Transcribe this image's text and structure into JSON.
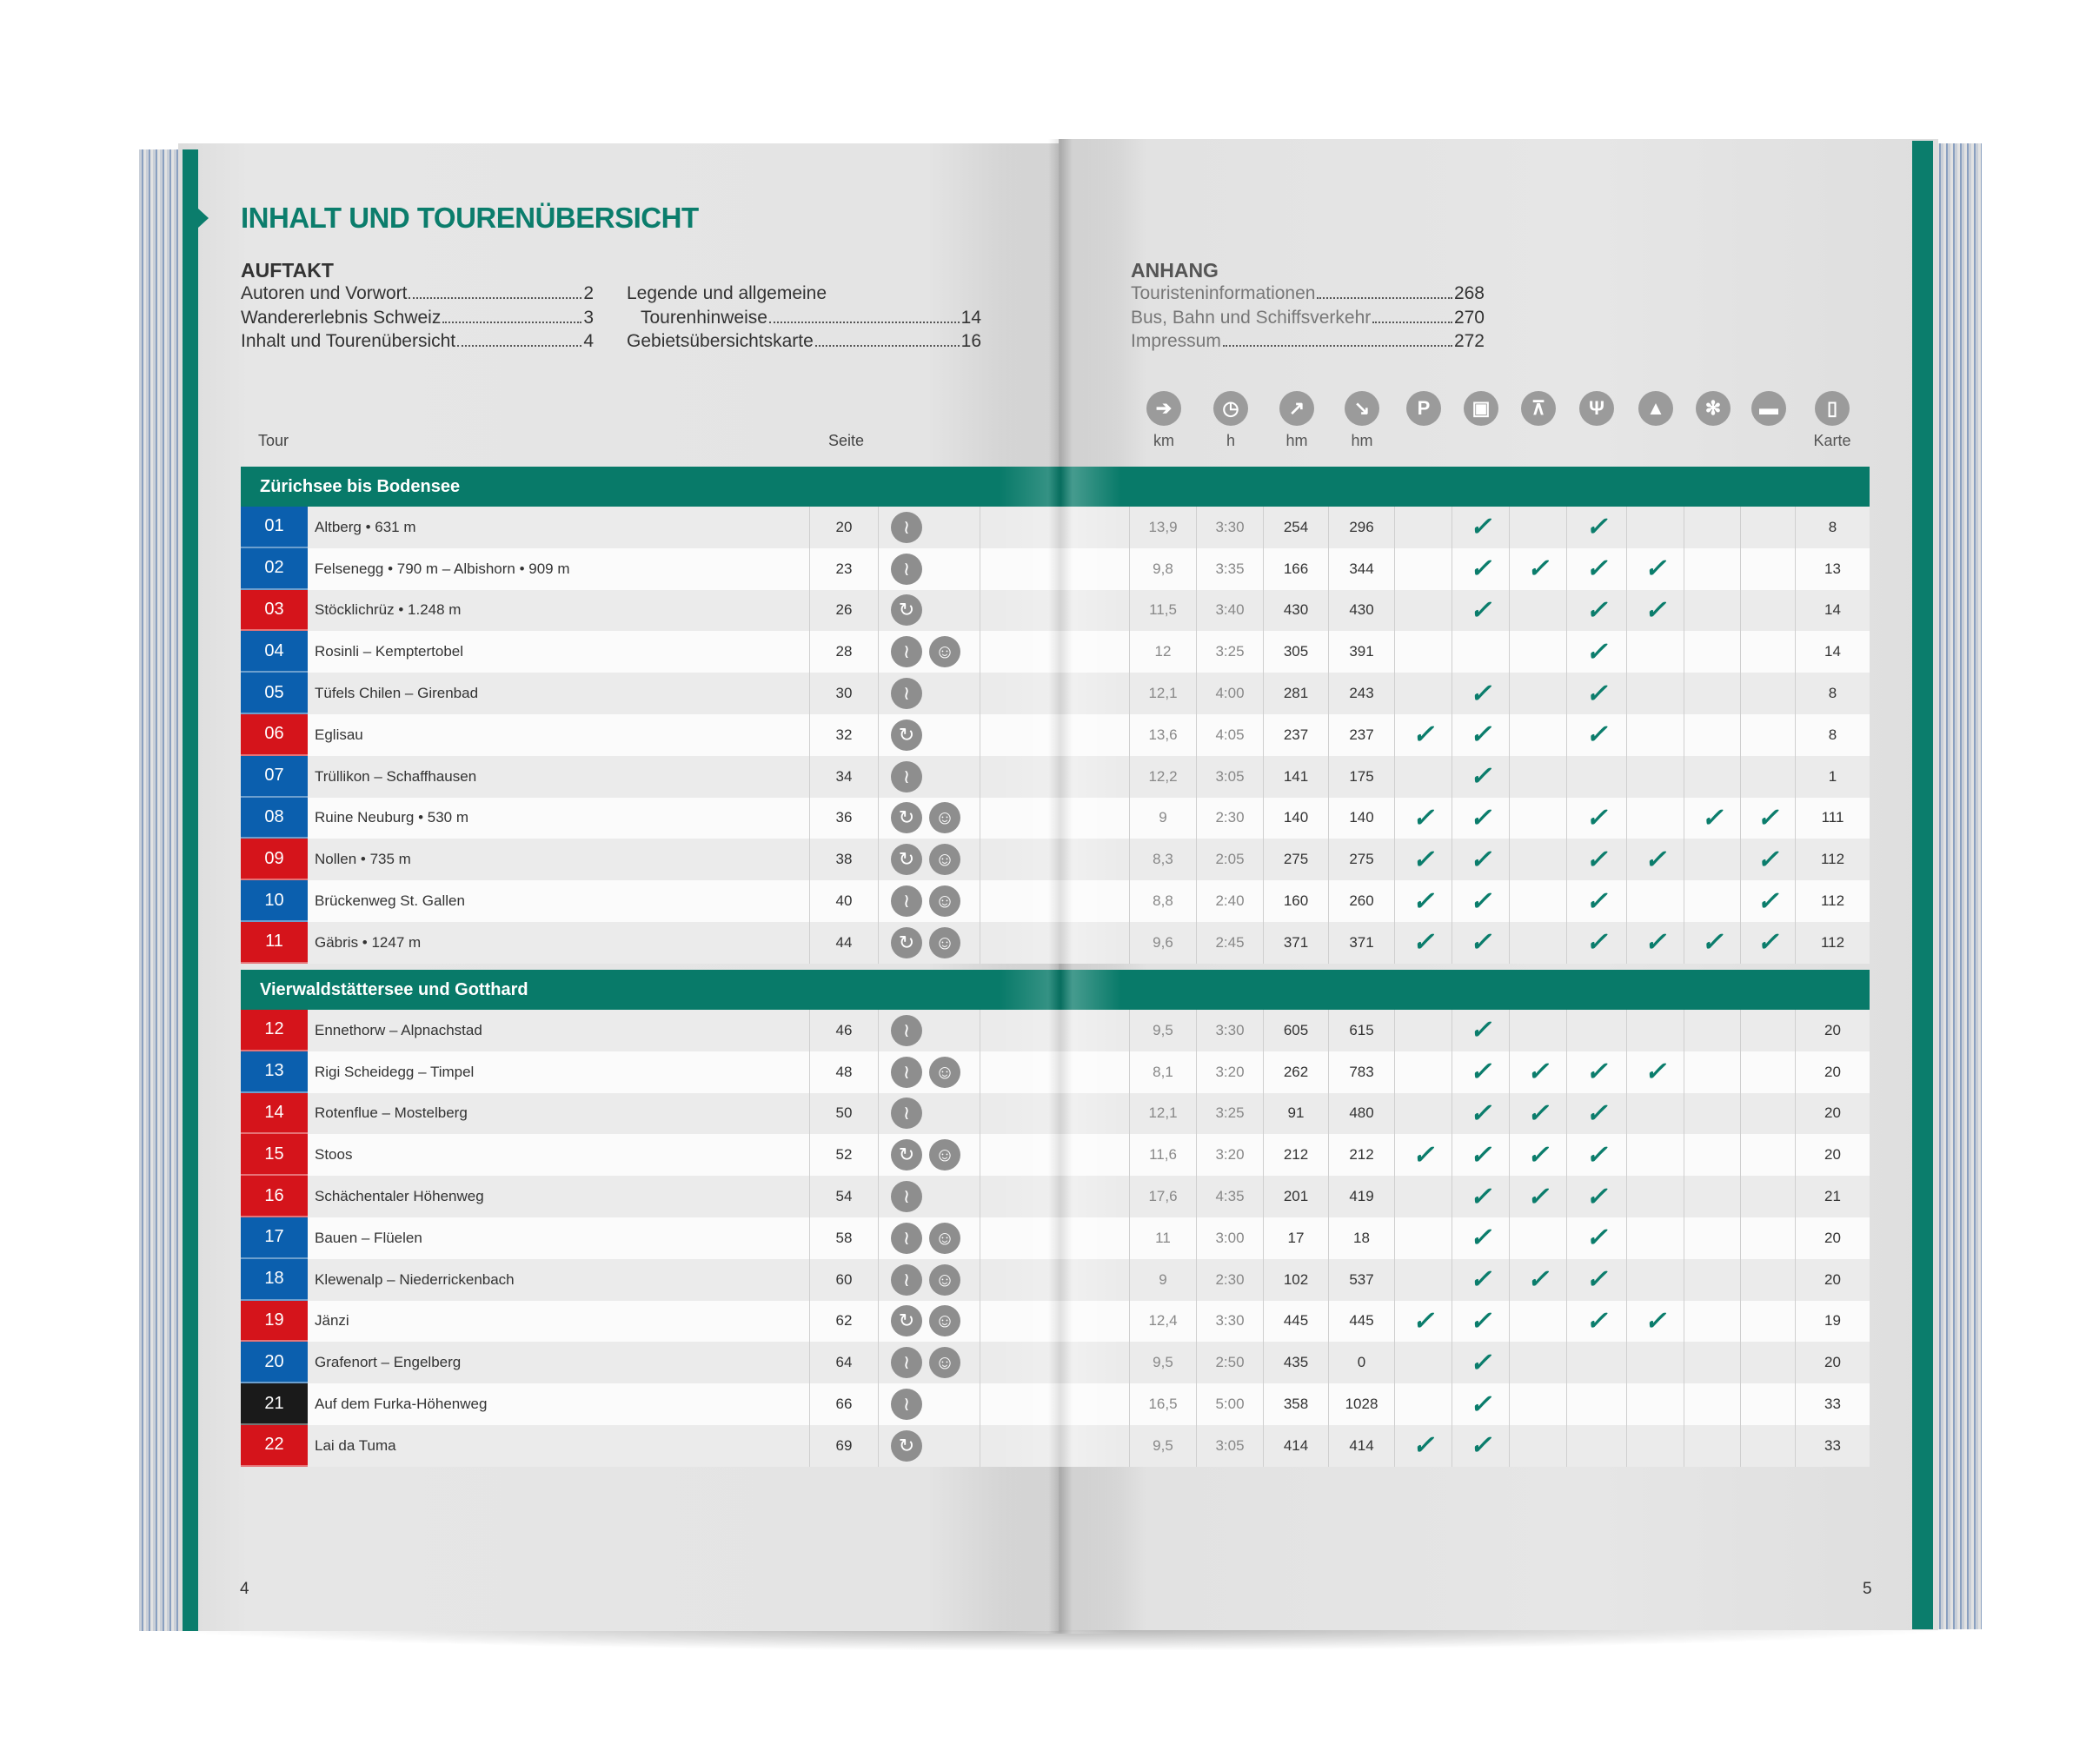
{
  "title": "INHALT UND TOURENÜBERSICHT",
  "auftakt": {
    "heading": "AUFTAKT",
    "entries": [
      {
        "label": "Autoren und Vorwort",
        "page": "2"
      },
      {
        "label": "Wandererlebnis Schweiz",
        "page": "3"
      },
      {
        "label": "Inhalt und Tourenübersicht",
        "page": "4"
      }
    ],
    "entries2": [
      {
        "label": "Legende und allgemeine",
        "page": ""
      },
      {
        "label": "Tourenhinweise",
        "page": "14"
      },
      {
        "label": "Gebietsübersichtskarte",
        "page": "16"
      }
    ]
  },
  "anhang": {
    "heading": "ANHANG",
    "entries": [
      {
        "label": "Touristeninformationen",
        "page": "268"
      },
      {
        "label": "Bus, Bahn und Schiffsverkehr",
        "page": "270"
      },
      {
        "label": "Impressum",
        "page": "272"
      }
    ]
  },
  "columns": {
    "tour": "Tour",
    "seite": "Seite",
    "km": "km",
    "h": "h",
    "hm_up": "hm",
    "hm_down": "hm",
    "karte": "Karte"
  },
  "header_icons": [
    "signpost-icon",
    "clock-icon",
    "ascent-icon",
    "descent-icon",
    "parking-icon",
    "bus-icon",
    "cable-car-icon",
    "restaurant-icon",
    "hut-icon",
    "winter-icon",
    "overnight-icon",
    "map-icon"
  ],
  "check_columns": [
    "parking",
    "bus",
    "cable-car",
    "restaurant",
    "hut",
    "winter",
    "overnight"
  ],
  "colors": {
    "teal": "#0b7d6c",
    "blue": "#0b5fae",
    "red": "#d5141b",
    "black": "#1a1a1a",
    "icon_gray": "#8e8e8e"
  },
  "sections": [
    {
      "title": "Zürichsee bis Bodensee",
      "tours": [
        {
          "nr": "01",
          "color": "blue",
          "name": "Altberg • 631 m",
          "page": "20",
          "route": "linear",
          "kids": false,
          "km": "13,9",
          "h": "3:30",
          "up": "254",
          "down": "296",
          "checks": [
            0,
            1,
            0,
            1,
            0,
            0,
            0
          ],
          "karte": "8"
        },
        {
          "nr": "02",
          "color": "blue",
          "name": "Felsenegg • 790 m – Albishorn • 909 m",
          "page": "23",
          "route": "linear",
          "kids": false,
          "km": "9,8",
          "h": "3:35",
          "up": "166",
          "down": "344",
          "checks": [
            0,
            1,
            1,
            1,
            1,
            0,
            0
          ],
          "karte": "13"
        },
        {
          "nr": "03",
          "color": "red",
          "name": "Stöcklichrüz • 1.248 m",
          "page": "26",
          "route": "loop",
          "kids": false,
          "km": "11,5",
          "h": "3:40",
          "up": "430",
          "down": "430",
          "checks": [
            0,
            1,
            0,
            1,
            1,
            0,
            0
          ],
          "karte": "14"
        },
        {
          "nr": "04",
          "color": "blue",
          "name": "Rosinli – Kemptertobel",
          "page": "28",
          "route": "linear",
          "kids": true,
          "km": "12",
          "h": "3:25",
          "up": "305",
          "down": "391",
          "checks": [
            0,
            0,
            0,
            1,
            0,
            0,
            0
          ],
          "karte": "14"
        },
        {
          "nr": "05",
          "color": "blue",
          "name": "Tüfels Chilen – Girenbad",
          "page": "30",
          "route": "linear",
          "kids": false,
          "km": "12,1",
          "h": "4:00",
          "up": "281",
          "down": "243",
          "checks": [
            0,
            1,
            0,
            1,
            0,
            0,
            0
          ],
          "karte": "8"
        },
        {
          "nr": "06",
          "color": "red",
          "name": "Eglisau",
          "page": "32",
          "route": "loop",
          "kids": false,
          "km": "13,6",
          "h": "4:05",
          "up": "237",
          "down": "237",
          "checks": [
            1,
            1,
            0,
            1,
            0,
            0,
            0
          ],
          "karte": "8"
        },
        {
          "nr": "07",
          "color": "blue",
          "name": "Trüllikon – Schaffhausen",
          "page": "34",
          "route": "linear",
          "kids": false,
          "km": "12,2",
          "h": "3:05",
          "up": "141",
          "down": "175",
          "checks": [
            0,
            1,
            0,
            0,
            0,
            0,
            0
          ],
          "karte": "1"
        },
        {
          "nr": "08",
          "color": "blue",
          "name": "Ruine Neuburg • 530 m",
          "page": "36",
          "route": "loop",
          "kids": true,
          "km": "9",
          "h": "2:30",
          "up": "140",
          "down": "140",
          "checks": [
            1,
            1,
            0,
            1,
            0,
            1,
            1
          ],
          "karte": "111"
        },
        {
          "nr": "09",
          "color": "red",
          "name": "Nollen • 735 m",
          "page": "38",
          "route": "loop",
          "kids": true,
          "km": "8,3",
          "h": "2:05",
          "up": "275",
          "down": "275",
          "checks": [
            1,
            1,
            0,
            1,
            1,
            0,
            1
          ],
          "karte": "112"
        },
        {
          "nr": "10",
          "color": "blue",
          "name": "Brückenweg St. Gallen",
          "page": "40",
          "route": "linear",
          "kids": true,
          "km": "8,8",
          "h": "2:40",
          "up": "160",
          "down": "260",
          "checks": [
            1,
            1,
            0,
            1,
            0,
            0,
            1
          ],
          "karte": "112"
        },
        {
          "nr": "11",
          "color": "red",
          "name": "Gäbris • 1247 m",
          "page": "44",
          "route": "loop",
          "kids": true,
          "km": "9,6",
          "h": "2:45",
          "up": "371",
          "down": "371",
          "checks": [
            1,
            1,
            0,
            1,
            1,
            1,
            1
          ],
          "karte": "112"
        }
      ]
    },
    {
      "title": "Vierwaldstättersee und Gotthard",
      "tours": [
        {
          "nr": "12",
          "color": "red",
          "name": "Ennethorw – Alpnachstad",
          "page": "46",
          "route": "linear",
          "kids": false,
          "km": "9,5",
          "h": "3:30",
          "up": "605",
          "down": "615",
          "checks": [
            0,
            1,
            0,
            0,
            0,
            0,
            0
          ],
          "karte": "20"
        },
        {
          "nr": "13",
          "color": "blue",
          "name": "Rigi Scheidegg – Timpel",
          "page": "48",
          "route": "linear",
          "kids": true,
          "km": "8,1",
          "h": "3:20",
          "up": "262",
          "down": "783",
          "checks": [
            0,
            1,
            1,
            1,
            1,
            0,
            0
          ],
          "karte": "20"
        },
        {
          "nr": "14",
          "color": "red",
          "name": "Rotenflue – Mostelberg",
          "page": "50",
          "route": "linear",
          "kids": false,
          "km": "12,1",
          "h": "3:25",
          "up": "91",
          "down": "480",
          "checks": [
            0,
            1,
            1,
            1,
            0,
            0,
            0
          ],
          "karte": "20"
        },
        {
          "nr": "15",
          "color": "red",
          "name": "Stoos",
          "page": "52",
          "route": "loop",
          "kids": true,
          "km": "11,6",
          "h": "3:20",
          "up": "212",
          "down": "212",
          "checks": [
            1,
            1,
            1,
            1,
            0,
            0,
            0
          ],
          "karte": "20"
        },
        {
          "nr": "16",
          "color": "red",
          "name": "Schächentaler Höhenweg",
          "page": "54",
          "route": "linear",
          "kids": false,
          "km": "17,6",
          "h": "4:35",
          "up": "201",
          "down": "419",
          "checks": [
            0,
            1,
            1,
            1,
            0,
            0,
            0
          ],
          "karte": "21"
        },
        {
          "nr": "17",
          "color": "blue",
          "name": "Bauen – Flüelen",
          "page": "58",
          "route": "linear",
          "kids": true,
          "km": "11",
          "h": "3:00",
          "up": "17",
          "down": "18",
          "checks": [
            0,
            1,
            0,
            1,
            0,
            0,
            0
          ],
          "karte": "20"
        },
        {
          "nr": "18",
          "color": "blue",
          "name": "Klewenalp – Niederrickenbach",
          "page": "60",
          "route": "linear",
          "kids": true,
          "km": "9",
          "h": "2:30",
          "up": "102",
          "down": "537",
          "checks": [
            0,
            1,
            1,
            1,
            0,
            0,
            0
          ],
          "karte": "20"
        },
        {
          "nr": "19",
          "color": "red",
          "name": "Jänzi",
          "page": "62",
          "route": "loop",
          "kids": true,
          "km": "12,4",
          "h": "3:30",
          "up": "445",
          "down": "445",
          "checks": [
            1,
            1,
            0,
            1,
            1,
            0,
            0
          ],
          "karte": "19"
        },
        {
          "nr": "20",
          "color": "blue",
          "name": "Grafenort – Engelberg",
          "page": "64",
          "route": "linear",
          "kids": true,
          "km": "9,5",
          "h": "2:50",
          "up": "435",
          "down": "0",
          "checks": [
            0,
            1,
            0,
            0,
            0,
            0,
            0
          ],
          "karte": "20"
        },
        {
          "nr": "21",
          "color": "black",
          "name": "Auf dem Furka-Höhenweg",
          "page": "66",
          "route": "linear",
          "kids": false,
          "km": "16,5",
          "h": "5:00",
          "up": "358",
          "down": "1028",
          "checks": [
            0,
            1,
            0,
            0,
            0,
            0,
            0
          ],
          "karte": "33"
        },
        {
          "nr": "22",
          "color": "red",
          "name": "Lai da Tuma",
          "page": "69",
          "route": "loop",
          "kids": false,
          "km": "9,5",
          "h": "3:05",
          "up": "414",
          "down": "414",
          "checks": [
            1,
            1,
            0,
            0,
            0,
            0,
            0
          ],
          "karte": "33"
        }
      ]
    }
  ],
  "page_numbers": {
    "left": "4",
    "right": "5"
  }
}
